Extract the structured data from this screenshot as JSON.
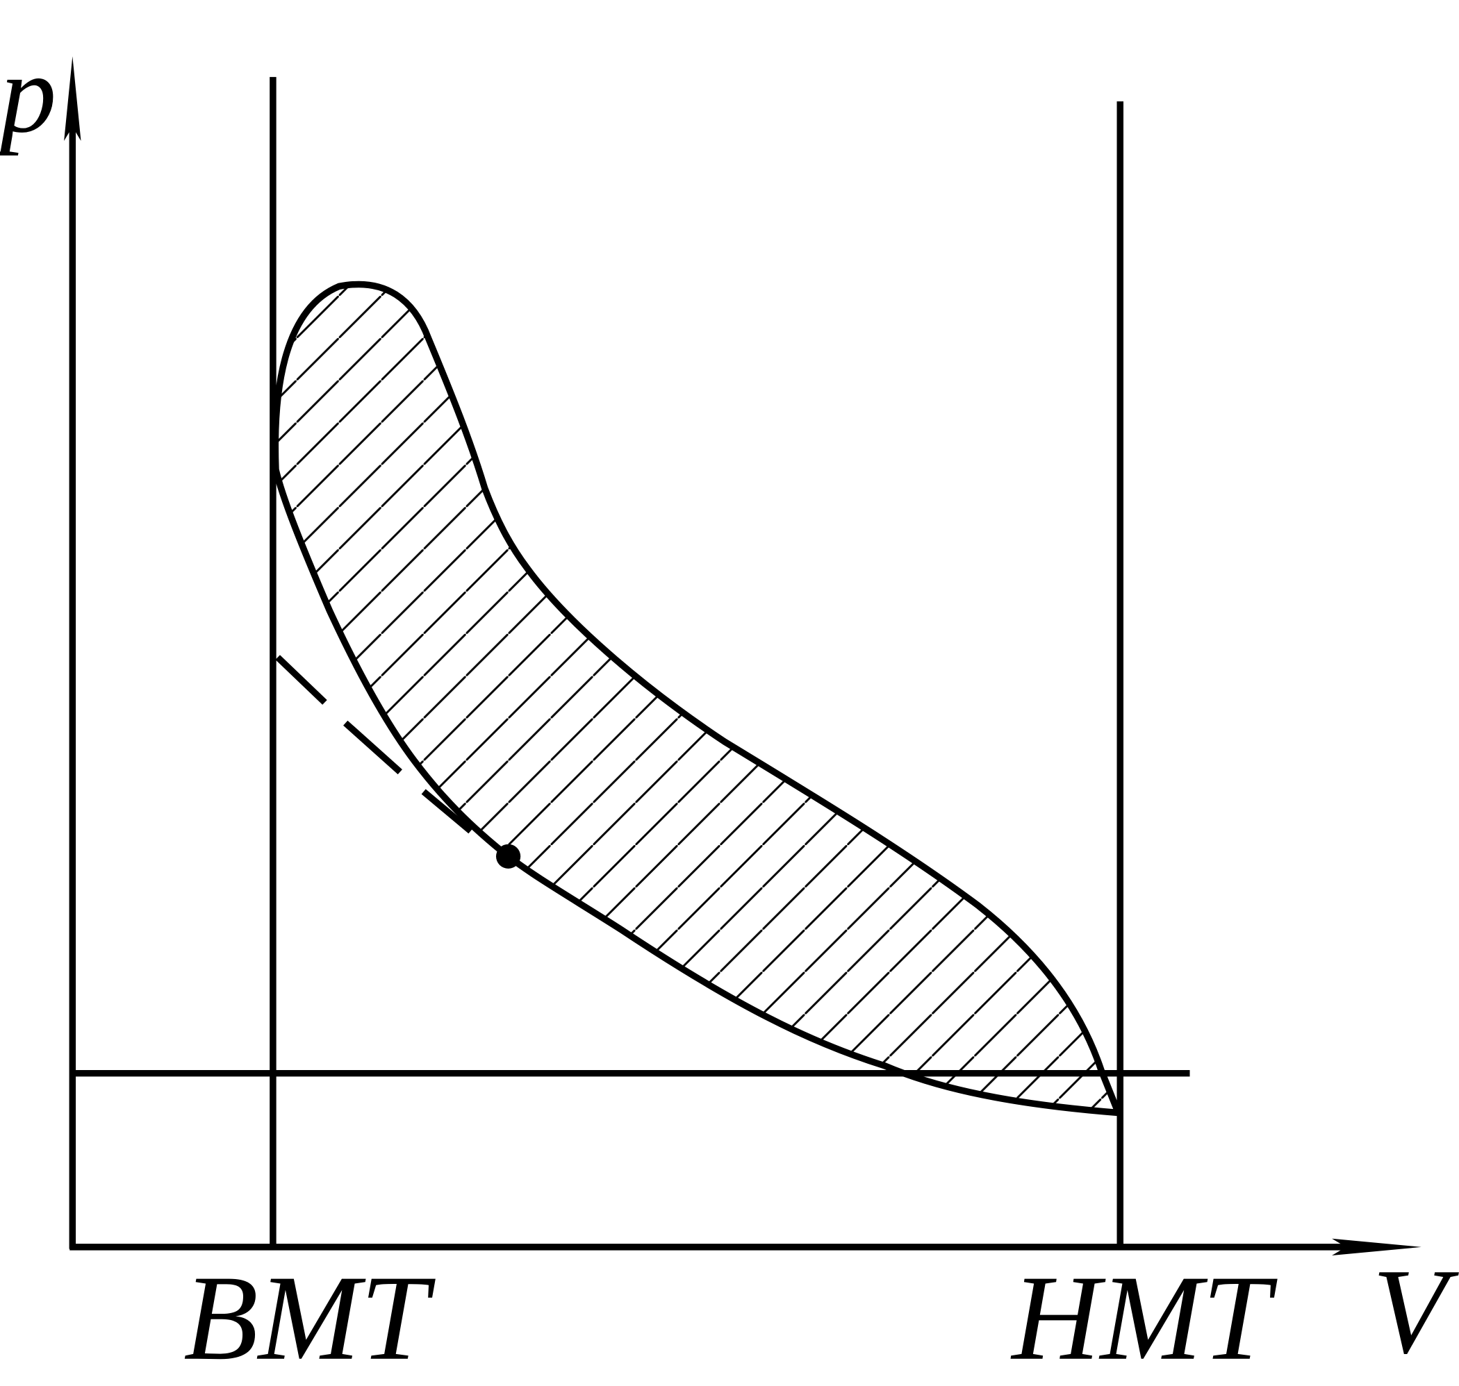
{
  "axes": {
    "y_label": "p",
    "x_label": "V"
  },
  "markers": [
    {
      "label": "BMT"
    },
    {
      "label": "HMT"
    }
  ]
}
